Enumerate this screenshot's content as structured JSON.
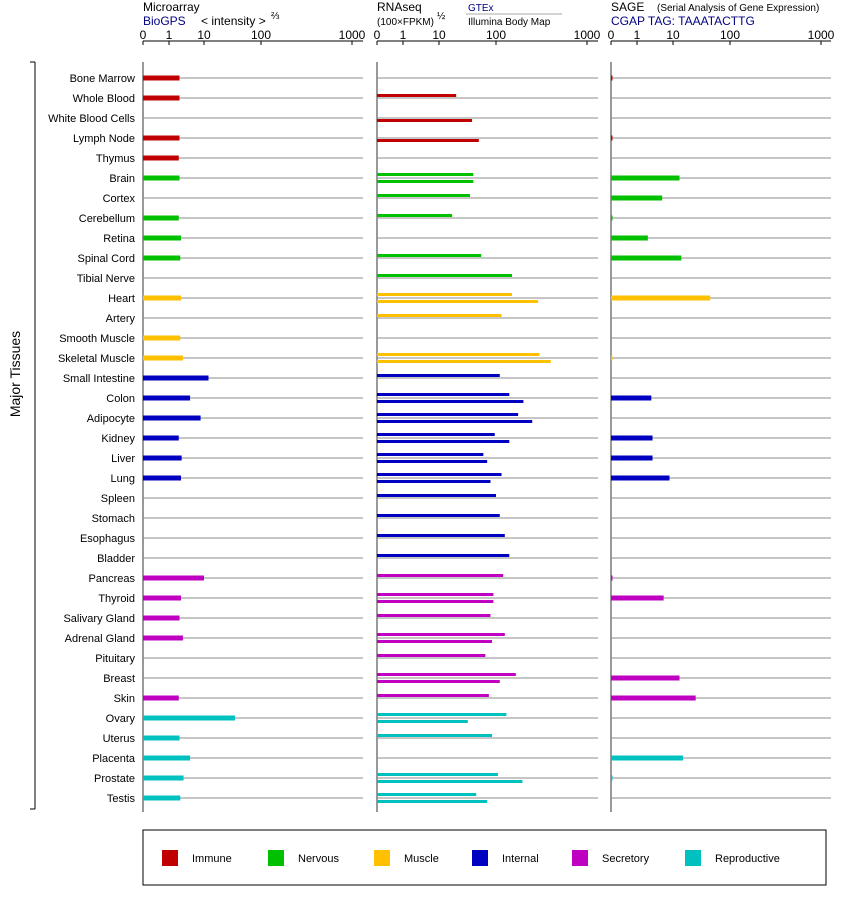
{
  "headers": {
    "microarray": {
      "title": "Microarray",
      "sub": "BioGPS",
      "unit": "< intensity >",
      "exp": "⅔"
    },
    "rnaseq": {
      "title": "RNAseq",
      "unit": "(100×FPKM)",
      "exp": "½",
      "src1": "GTEx",
      "src2": "Illumina Body Map"
    },
    "sage": {
      "title": "SAGE",
      "note": "(Serial Analysis of Gene Expression)",
      "tag": "CGAP  TAG: TAAATACTTG"
    }
  },
  "axis_ticks": [
    "0",
    "1",
    "10",
    "100",
    "1000"
  ],
  "side_label": "Major Tissues",
  "colors": {
    "Immune": "#c00000",
    "Nervous": "#00c000",
    "Muscle": "#ffc000",
    "Internal": "#0000c0",
    "Secretory": "#c000c0",
    "Reproductive": "#00c0c0"
  },
  "legend": [
    {
      "name": "Immune",
      "color": "#c00000"
    },
    {
      "name": "Nervous",
      "color": "#00c000"
    },
    {
      "name": "Muscle",
      "color": "#ffc000"
    },
    {
      "name": "Internal",
      "color": "#0000c0"
    },
    {
      "name": "Secretory",
      "color": "#c000c0"
    },
    {
      "name": "Reproductive",
      "color": "#00c0c0"
    }
  ],
  "chart_data": {
    "type": "bar",
    "scale": "transformed (0, 1, 10, 100, 1000)",
    "tissues": [
      {
        "name": "Bone Marrow",
        "group": "Immune",
        "microarray": [
          2
        ],
        "gtex": [],
        "ibm": [],
        "sage": [
          0.05
        ]
      },
      {
        "name": "Whole Blood",
        "group": "Immune",
        "microarray": [
          2
        ],
        "gtex": [
          20
        ],
        "ibm": [],
        "sage": []
      },
      {
        "name": "White Blood Cells",
        "group": "Immune",
        "microarray": [],
        "gtex": [],
        "ibm": [
          38
        ],
        "sage": []
      },
      {
        "name": "Lymph Node",
        "group": "Immune",
        "microarray": [
          2
        ],
        "gtex": [],
        "ibm": [
          50
        ],
        "sage": [
          0.05
        ]
      },
      {
        "name": "Thymus",
        "group": "Immune",
        "microarray": [
          1.9
        ],
        "gtex": [],
        "ibm": [],
        "sage": []
      },
      {
        "name": "Brain",
        "group": "Nervous",
        "microarray": [
          2
        ],
        "gtex": [
          40
        ],
        "ibm": [
          40
        ],
        "sage": [
          13
        ]
      },
      {
        "name": "Cortex",
        "group": "Nervous",
        "microarray": [],
        "gtex": [
          35
        ],
        "ibm": [],
        "sage": [
          5
        ]
      },
      {
        "name": "Cerebellum",
        "group": "Nervous",
        "microarray": [
          1.9
        ],
        "gtex": [
          17
        ],
        "ibm": [],
        "sage": [
          0.05
        ]
      },
      {
        "name": "Retina",
        "group": "Nervous",
        "microarray": [
          2.2
        ],
        "gtex": [],
        "ibm": [],
        "sage": [
          2
        ]
      },
      {
        "name": "Spinal Cord",
        "group": "Nervous",
        "microarray": [
          2.1
        ],
        "gtex": [
          55
        ],
        "ibm": [],
        "sage": [
          14
        ]
      },
      {
        "name": "Tibial Nerve",
        "group": "Nervous",
        "microarray": [],
        "gtex": [
          150
        ],
        "ibm": [],
        "sage": []
      },
      {
        "name": "Heart",
        "group": "Muscle",
        "microarray": [
          2.2
        ],
        "gtex": [
          150
        ],
        "ibm": [
          290
        ],
        "sage": [
          45
        ]
      },
      {
        "name": "Artery",
        "group": "Muscle",
        "microarray": [],
        "gtex": [
          115
        ],
        "ibm": [],
        "sage": []
      },
      {
        "name": "Smooth Muscle",
        "group": "Muscle",
        "microarray": [
          2.1
        ],
        "gtex": [],
        "ibm": [],
        "sage": []
      },
      {
        "name": "Skeletal Muscle",
        "group": "Muscle",
        "microarray": [
          2.5
        ],
        "gtex": [
          300
        ],
        "ibm": [
          400
        ],
        "sage": [
          0.05
        ]
      },
      {
        "name": "Small Intestine",
        "group": "Internal",
        "microarray": [
          12
        ],
        "gtex": [
          110
        ],
        "ibm": [],
        "sage": []
      },
      {
        "name": "Colon",
        "group": "Internal",
        "microarray": [
          4
        ],
        "gtex": [
          140
        ],
        "ibm": [
          200
        ],
        "sage": [
          2.5
        ]
      },
      {
        "name": "Adipocyte",
        "group": "Internal",
        "microarray": [
          8
        ],
        "gtex": [
          175
        ],
        "ibm": [
          250
        ],
        "sage": []
      },
      {
        "name": "Kidney",
        "group": "Internal",
        "microarray": [
          1.9
        ],
        "gtex": [
          95
        ],
        "ibm": [
          140
        ],
        "sage": [
          2.7
        ]
      },
      {
        "name": "Liver",
        "group": "Internal",
        "microarray": [
          2.3
        ],
        "gtex": [
          60
        ],
        "ibm": [
          70
        ],
        "sage": [
          2.7
        ]
      },
      {
        "name": "Lung",
        "group": "Internal",
        "microarray": [
          2.2
        ],
        "gtex": [
          115
        ],
        "ibm": [
          80
        ],
        "sage": [
          8
        ]
      },
      {
        "name": "Spleen",
        "group": "Internal",
        "microarray": [],
        "gtex": [
          100
        ],
        "ibm": [],
        "sage": []
      },
      {
        "name": "Stomach",
        "group": "Internal",
        "microarray": [],
        "gtex": [
          110
        ],
        "ibm": [],
        "sage": []
      },
      {
        "name": "Esophagus",
        "group": "Internal",
        "microarray": [],
        "gtex": [
          125
        ],
        "ibm": [],
        "sage": []
      },
      {
        "name": "Bladder",
        "group": "Internal",
        "microarray": [],
        "gtex": [
          140
        ],
        "ibm": [],
        "sage": []
      },
      {
        "name": "Pancreas",
        "group": "Secretory",
        "microarray": [
          10
        ],
        "gtex": [
          120
        ],
        "ibm": [],
        "sage": [
          0.05
        ]
      },
      {
        "name": "Thyroid",
        "group": "Secretory",
        "microarray": [
          2.2
        ],
        "gtex": [
          90
        ],
        "ibm": [
          90
        ],
        "sage": [
          5.5
        ]
      },
      {
        "name": "Salivary Gland",
        "group": "Secretory",
        "microarray": [
          2
        ],
        "gtex": [
          80
        ],
        "ibm": [],
        "sage": []
      },
      {
        "name": "Adrenal Gland",
        "group": "Secretory",
        "microarray": [
          2.5
        ],
        "gtex": [
          125
        ],
        "ibm": [
          85
        ],
        "sage": []
      },
      {
        "name": "Pituitary",
        "group": "Secretory",
        "microarray": [],
        "gtex": [
          65
        ],
        "ibm": [],
        "sage": []
      },
      {
        "name": "Breast",
        "group": "Secretory",
        "microarray": [],
        "gtex": [
          165
        ],
        "ibm": [
          110
        ],
        "sage": [
          13
        ]
      },
      {
        "name": "Skin",
        "group": "Secretory",
        "microarray": [
          1.9
        ],
        "gtex": [
          75
        ],
        "ibm": [],
        "sage": [
          25
        ]
      },
      {
        "name": "Ovary",
        "group": "Reproductive",
        "microarray": [
          35
        ],
        "gtex": [
          130
        ],
        "ibm": [
          32
        ],
        "sage": []
      },
      {
        "name": "Uterus",
        "group": "Reproductive",
        "microarray": [
          2
        ],
        "gtex": [
          85
        ],
        "ibm": [],
        "sage": []
      },
      {
        "name": "Placenta",
        "group": "Reproductive",
        "microarray": [
          4
        ],
        "gtex": [],
        "ibm": [],
        "sage": [
          15
        ]
      },
      {
        "name": "Prostate",
        "group": "Reproductive",
        "microarray": [
          2.6
        ],
        "gtex": [
          105
        ],
        "ibm": [
          195
        ],
        "sage": [
          0.05
        ]
      },
      {
        "name": "Testis",
        "group": "Reproductive",
        "microarray": [
          2.1
        ],
        "gtex": [
          45
        ],
        "ibm": [
          70
        ],
        "sage": []
      }
    ]
  }
}
